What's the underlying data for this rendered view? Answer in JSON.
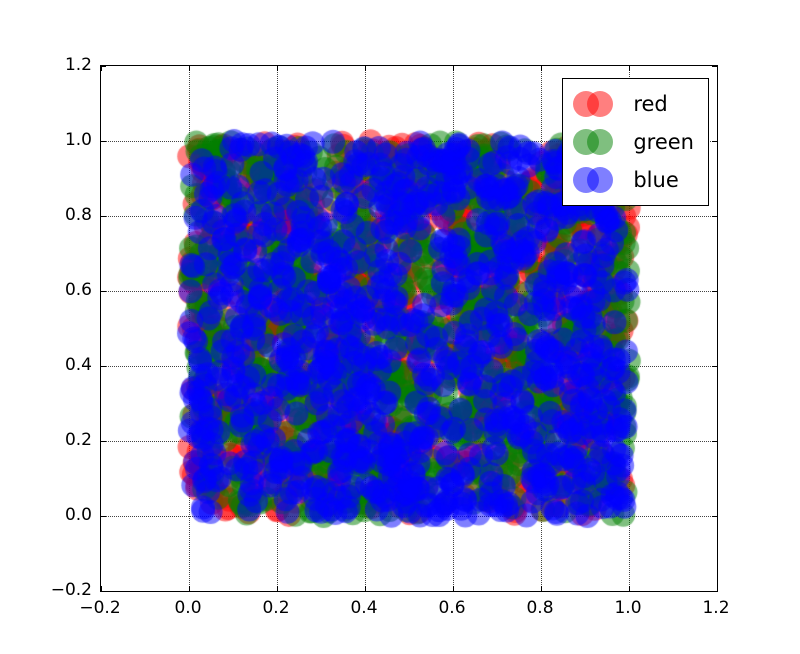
{
  "chart_data": {
    "type": "scatter",
    "title": "",
    "xlabel": "",
    "ylabel": "",
    "xlim": [
      -0.2,
      1.2
    ],
    "ylim": [
      -0.2,
      1.2
    ],
    "xtick_values": [
      -0.2,
      0.0,
      0.2,
      0.4,
      0.6,
      0.8,
      1.0,
      1.2
    ],
    "xtick_labels": [
      "−0.2",
      "0.0",
      "0.2",
      "0.4",
      "0.6",
      "0.8",
      "1.0",
      "1.2"
    ],
    "ytick_values": [
      -0.2,
      0.0,
      0.2,
      0.4,
      0.6,
      0.8,
      1.0,
      1.2
    ],
    "ytick_labels": [
      "−0.2",
      "0.0",
      "0.2",
      "0.4",
      "0.6",
      "0.8",
      "1.0",
      "1.2"
    ],
    "grid": true,
    "grid_line_style": "dotted",
    "frame_color": "#000000",
    "background": "#ffffff",
    "legend": {
      "position": "upper right",
      "entries": [
        "red",
        "green",
        "blue"
      ]
    },
    "marker": {
      "shape": "circle",
      "radius_px": 12,
      "alpha": 0.5
    },
    "series": [
      {
        "name": "red",
        "label": "red",
        "color": "#ff0000",
        "n_points": 1000,
        "distribution": "uniform",
        "x_min": 0,
        "x_max": 1,
        "y_min": 0,
        "y_max": 1
      },
      {
        "name": "green",
        "label": "green",
        "color": "#008000",
        "n_points": 1000,
        "distribution": "uniform",
        "x_min": 0,
        "x_max": 1,
        "y_min": 0,
        "y_max": 1
      },
      {
        "name": "blue",
        "label": "blue",
        "color": "#0000ff",
        "n_points": 1000,
        "distribution": "uniform",
        "x_min": 0,
        "x_max": 1,
        "y_min": 0,
        "y_max": 1
      }
    ]
  }
}
